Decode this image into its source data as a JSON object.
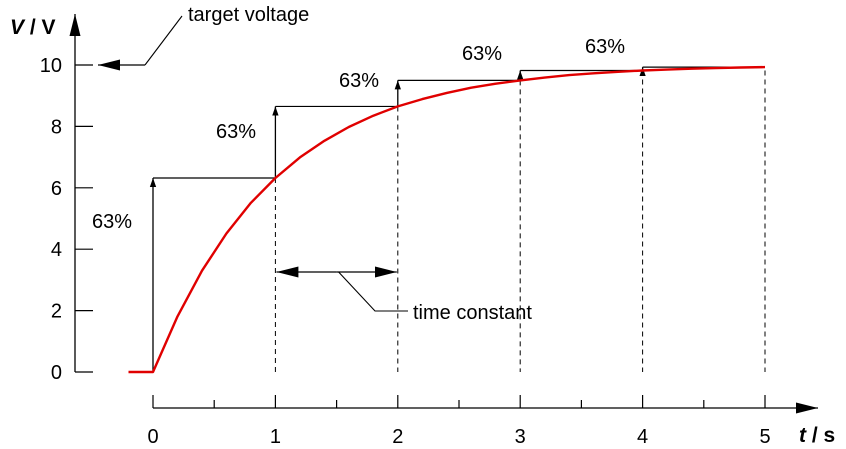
{
  "chart_data": {
    "type": "line",
    "title": "",
    "xlabel": {
      "symbol": "t",
      "unit": "s"
    },
    "ylabel": {
      "symbol": "V",
      "unit": "V"
    },
    "xlim": [
      0,
      5
    ],
    "ylim": [
      0,
      10
    ],
    "x_ticks": [
      "0",
      "1",
      "2",
      "3",
      "4",
      "5"
    ],
    "y_ticks": [
      "0",
      "2",
      "4",
      "6",
      "8",
      "10"
    ],
    "grid": false,
    "series": [
      {
        "color": "#e00000",
        "x": [
          -0.2,
          0,
          0.2,
          0.4,
          0.6,
          0.8,
          1.0,
          1.2,
          1.4,
          1.6,
          1.8,
          2.0,
          2.2,
          2.4,
          2.6,
          2.8,
          3.0,
          3.2,
          3.4,
          3.6,
          3.8,
          4.0,
          4.2,
          4.4,
          4.6,
          4.8,
          5.0
        ],
        "y": [
          0,
          0,
          1.81,
          3.3,
          4.51,
          5.51,
          6.32,
          6.99,
          7.53,
          7.98,
          8.35,
          8.65,
          8.89,
          9.09,
          9.26,
          9.39,
          9.5,
          9.59,
          9.67,
          9.73,
          9.78,
          9.82,
          9.85,
          9.88,
          9.9,
          9.92,
          9.93
        ]
      }
    ],
    "annotations": {
      "target_voltage": {
        "text": "target voltage",
        "value": 10
      },
      "time_constant": {
        "text": "time constant",
        "from": 1,
        "to": 2
      },
      "steps": [
        {
          "label": "63%",
          "t": 0,
          "from": 0,
          "to": 6.32
        },
        {
          "label": "63%",
          "t": 1,
          "from": 6.32,
          "to": 8.65
        },
        {
          "label": "63%",
          "t": 2,
          "from": 8.65,
          "to": 9.5
        },
        {
          "label": "63%",
          "t": 3,
          "from": 9.5,
          "to": 9.82
        },
        {
          "label": "63%",
          "t": 4,
          "from": 9.82,
          "to": 9.93
        }
      ]
    }
  }
}
